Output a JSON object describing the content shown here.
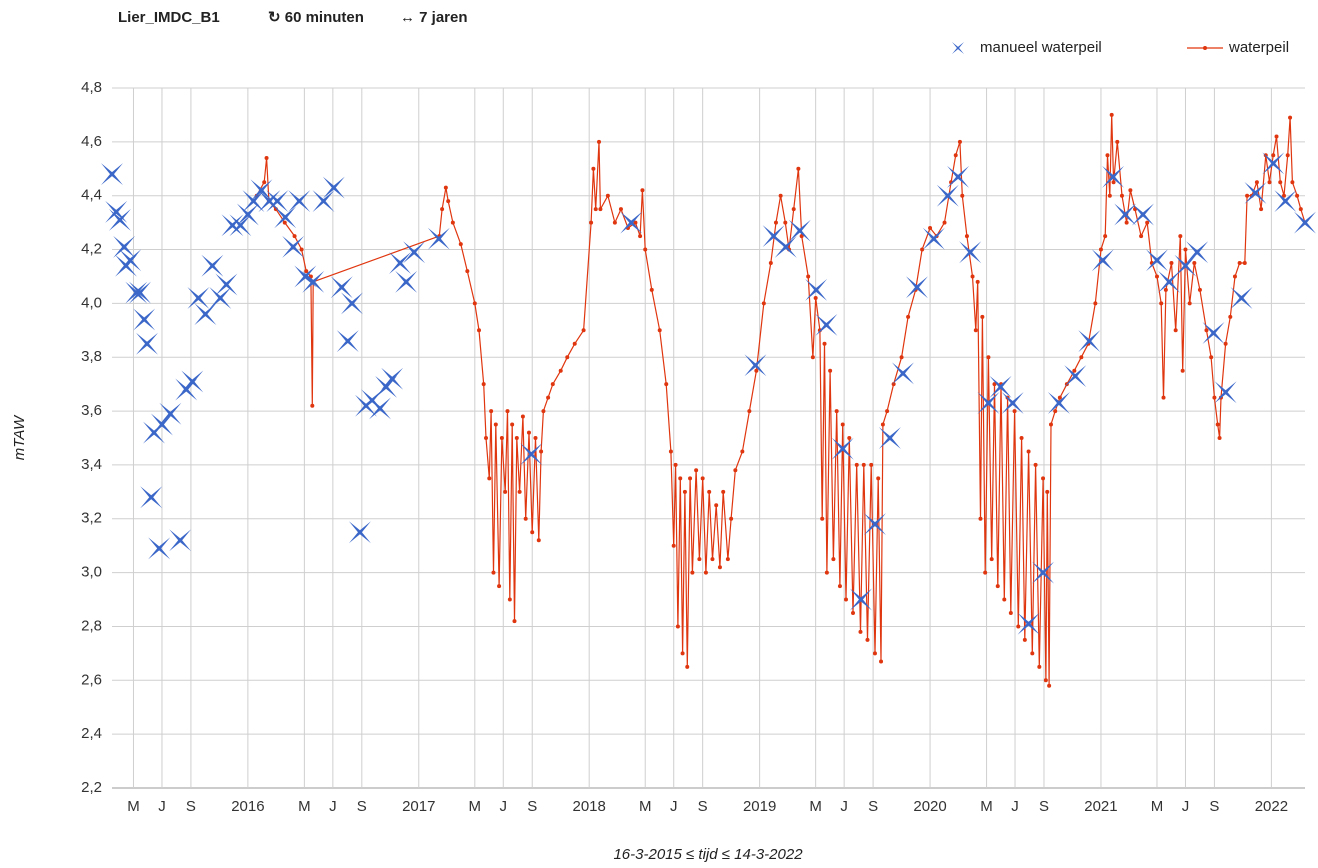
{
  "chart_data": {
    "type": "line",
    "title": "Lier_IMDC_B1",
    "subtitle": [
      "↻ 60 minuten",
      "↔ 7 jaren"
    ],
    "ylabel": "mTAW",
    "xlabel": "16-3-2015 ≤ tijd ≤ 14-3-2022",
    "legend": "top-right",
    "grid": true,
    "xlim": [
      "2015-03-16",
      "2022-03-14"
    ],
    "xticks": [
      {
        "value": "2015-05-01",
        "label": "M"
      },
      {
        "value": "2015-07-01",
        "label": "J"
      },
      {
        "value": "2015-09-01",
        "label": "S"
      },
      {
        "value": "2016-01-01",
        "label": "2016"
      },
      {
        "value": "2016-05-01",
        "label": "M"
      },
      {
        "value": "2016-07-01",
        "label": "J"
      },
      {
        "value": "2016-09-01",
        "label": "S"
      },
      {
        "value": "2017-01-01",
        "label": "2017"
      },
      {
        "value": "2017-05-01",
        "label": "M"
      },
      {
        "value": "2017-07-01",
        "label": "J"
      },
      {
        "value": "2017-09-01",
        "label": "S"
      },
      {
        "value": "2018-01-01",
        "label": "2018"
      },
      {
        "value": "2018-05-01",
        "label": "M"
      },
      {
        "value": "2018-07-01",
        "label": "J"
      },
      {
        "value": "2018-09-01",
        "label": "S"
      },
      {
        "value": "2019-01-01",
        "label": "2019"
      },
      {
        "value": "2019-05-01",
        "label": "M"
      },
      {
        "value": "2019-07-01",
        "label": "J"
      },
      {
        "value": "2019-09-01",
        "label": "S"
      },
      {
        "value": "2020-01-01",
        "label": "2020"
      },
      {
        "value": "2020-05-01",
        "label": "M"
      },
      {
        "value": "2020-07-01",
        "label": "J"
      },
      {
        "value": "2020-09-01",
        "label": "S"
      },
      {
        "value": "2021-01-01",
        "label": "2021"
      },
      {
        "value": "2021-05-01",
        "label": "M"
      },
      {
        "value": "2021-07-01",
        "label": "J"
      },
      {
        "value": "2021-09-01",
        "label": "S"
      },
      {
        "value": "2022-01-01",
        "label": "2022"
      }
    ],
    "ylim": [
      2.2,
      4.8
    ],
    "yticks": [
      {
        "value": 2.2,
        "label": "2,2"
      },
      {
        "value": 2.4,
        "label": "2,4"
      },
      {
        "value": 2.6,
        "label": "2,6"
      },
      {
        "value": 2.8,
        "label": "2,8"
      },
      {
        "value": 3.0,
        "label": "3,0"
      },
      {
        "value": 3.2,
        "label": "3,2"
      },
      {
        "value": 3.4,
        "label": "3,4"
      },
      {
        "value": 3.6,
        "label": "3,6"
      },
      {
        "value": 3.8,
        "label": "3,8"
      },
      {
        "value": 4.0,
        "label": "4,0"
      },
      {
        "value": 4.2,
        "label": "4,2"
      },
      {
        "value": 4.4,
        "label": "4,4"
      },
      {
        "value": 4.6,
        "label": "4,6"
      },
      {
        "value": 4.8,
        "label": "4,8"
      }
    ],
    "series": [
      {
        "name": "manueel waterpeil",
        "color": "#3b67c9",
        "mode": "markers",
        "x": [
          "2015-03-16",
          "2015-03-25",
          "2015-04-02",
          "2015-04-11",
          "2015-04-15",
          "2015-04-24",
          "2015-05-07",
          "2015-05-15",
          "2015-05-24",
          "2015-05-30",
          "2015-06-08",
          "2015-06-14",
          "2015-06-25",
          "2015-07-01",
          "2015-07-19",
          "2015-08-09",
          "2015-08-22",
          "2015-09-04",
          "2015-09-17",
          "2015-10-02",
          "2015-10-17",
          "2015-11-03",
          "2015-11-16",
          "2015-11-29",
          "2015-12-16",
          "2016-01-01",
          "2016-01-13",
          "2016-01-30",
          "2016-02-16",
          "2016-03-04",
          "2016-03-21",
          "2016-04-07",
          "2016-04-20",
          "2016-05-03",
          "2016-05-20",
          "2016-06-11",
          "2016-07-03",
          "2016-07-20",
          "2016-08-02",
          "2016-08-11",
          "2016-08-28",
          "2016-09-10",
          "2016-09-23",
          "2016-10-10",
          "2016-10-23",
          "2016-11-05",
          "2016-11-22",
          "2016-12-05",
          "2016-12-22",
          "2017-02-13",
          "2017-08-30",
          "2018-04-01",
          "2018-12-23",
          "2019-01-31",
          "2019-02-26",
          "2019-03-28",
          "2019-05-02",
          "2019-05-24",
          "2019-06-28",
          "2019-08-06",
          "2019-09-05",
          "2019-10-07",
          "2019-11-04",
          "2019-12-04",
          "2020-01-09",
          "2020-02-08",
          "2020-03-01",
          "2020-03-27",
          "2020-05-05",
          "2020-05-31",
          "2020-06-26",
          "2020-07-30",
          "2020-08-30",
          "2020-10-03",
          "2020-11-07",
          "2020-12-07",
          "2021-01-05",
          "2021-01-27",
          "2021-02-22",
          "2021-04-01",
          "2021-05-01",
          "2021-05-27",
          "2021-07-01",
          "2021-07-26",
          "2021-08-30",
          "2021-09-25",
          "2021-10-29",
          "2021-11-28",
          "2022-01-05",
          "2022-01-31",
          "2022-03-14"
        ],
        "values": [
          4.48,
          4.34,
          4.31,
          4.21,
          4.14,
          4.16,
          4.04,
          4.04,
          3.94,
          3.85,
          3.28,
          3.52,
          3.09,
          3.55,
          3.59,
          3.12,
          3.68,
          3.71,
          4.02,
          3.96,
          4.14,
          4.02,
          4.07,
          4.29,
          4.29,
          4.33,
          4.38,
          4.42,
          4.38,
          4.38,
          4.32,
          4.21,
          4.38,
          4.1,
          4.08,
          4.38,
          4.43,
          4.06,
          3.86,
          4.0,
          3.15,
          3.62,
          3.64,
          3.61,
          3.69,
          3.72,
          4.15,
          4.08,
          4.19,
          4.24,
          3.44,
          4.3,
          3.77,
          4.25,
          4.21,
          4.27,
          4.05,
          3.92,
          3.46,
          2.9,
          3.18,
          3.5,
          3.74,
          4.06,
          4.24,
          4.4,
          4.47,
          4.19,
          3.63,
          3.69,
          3.63,
          2.81,
          3.0,
          3.63,
          3.73,
          3.86,
          4.16,
          4.47,
          4.33,
          4.33,
          4.16,
          4.08,
          4.14,
          4.19,
          3.89,
          3.67,
          4.02,
          4.41,
          4.52,
          4.38,
          4.3
        ]
      },
      {
        "name": "waterpeil",
        "color": "#e0360f",
        "mode": "lines+markers",
        "x": [
          "2016-01-20",
          "2016-02-05",
          "2016-02-10",
          "2016-02-15",
          "2016-03-01",
          "2016-03-20",
          "2016-04-10",
          "2016-04-25",
          "2016-05-05",
          "2016-05-15",
          "2016-05-18",
          "2016-05-20",
          "2017-02-14",
          "2017-02-20",
          "2017-02-28",
          "2017-03-05",
          "2017-03-15",
          "2017-04-01",
          "2017-04-15",
          "2017-05-01",
          "2017-05-10",
          "2017-05-20",
          "2017-05-25",
          "2017-06-01",
          "2017-06-05",
          "2017-06-10",
          "2017-06-15",
          "2017-06-22",
          "2017-06-28",
          "2017-07-05",
          "2017-07-10",
          "2017-07-15",
          "2017-07-20",
          "2017-07-25",
          "2017-07-30",
          "2017-08-05",
          "2017-08-12",
          "2017-08-18",
          "2017-08-25",
          "2017-09-01",
          "2017-09-08",
          "2017-09-15",
          "2017-09-20",
          "2017-09-25",
          "2017-10-05",
          "2017-10-15",
          "2017-11-01",
          "2017-11-15",
          "2017-12-01",
          "2017-12-20",
          "2018-01-05",
          "2018-01-10",
          "2018-01-15",
          "2018-01-22",
          "2018-01-25",
          "2018-02-10",
          "2018-02-25",
          "2018-03-10",
          "2018-03-25",
          "2018-04-10",
          "2018-04-20",
          "2018-04-25",
          "2018-05-01",
          "2018-05-15",
          "2018-06-01",
          "2018-06-15",
          "2018-06-25",
          "2018-07-01",
          "2018-07-05",
          "2018-07-10",
          "2018-07-15",
          "2018-07-20",
          "2018-07-25",
          "2018-07-30",
          "2018-08-05",
          "2018-08-10",
          "2018-08-18",
          "2018-08-25",
          "2018-09-01",
          "2018-09-08",
          "2018-09-15",
          "2018-09-22",
          "2018-09-30",
          "2018-10-08",
          "2018-10-15",
          "2018-10-25",
          "2018-11-01",
          "2018-11-10",
          "2018-11-25",
          "2018-12-10",
          "2018-12-25",
          "2019-01-10",
          "2019-01-25",
          "2019-02-05",
          "2019-02-15",
          "2019-02-25",
          "2019-03-05",
          "2019-03-15",
          "2019-03-25",
          "2019-04-01",
          "2019-04-15",
          "2019-04-25",
          "2019-05-01",
          "2019-05-10",
          "2019-05-15",
          "2019-05-20",
          "2019-05-25",
          "2019-06-01",
          "2019-06-08",
          "2019-06-15",
          "2019-06-22",
          "2019-06-28",
          "2019-07-05",
          "2019-07-12",
          "2019-07-20",
          "2019-07-28",
          "2019-08-05",
          "2019-08-12",
          "2019-08-20",
          "2019-08-28",
          "2019-09-05",
          "2019-09-12",
          "2019-09-18",
          "2019-09-22",
          "2019-10-01",
          "2019-10-15",
          "2019-11-01",
          "2019-11-15",
          "2019-12-01",
          "2019-12-15",
          "2020-01-01",
          "2020-01-15",
          "2020-02-01",
          "2020-02-15",
          "2020-02-25",
          "2020-03-05",
          "2020-03-10",
          "2020-03-20",
          "2020-04-01",
          "2020-04-08",
          "2020-04-12",
          "2020-04-18",
          "2020-04-22",
          "2020-04-28",
          "2020-05-05",
          "2020-05-12",
          "2020-05-18",
          "2020-05-25",
          "2020-06-01",
          "2020-06-08",
          "2020-06-15",
          "2020-06-22",
          "2020-06-30",
          "2020-07-08",
          "2020-07-15",
          "2020-07-22",
          "2020-07-30",
          "2020-08-07",
          "2020-08-14",
          "2020-08-22",
          "2020-08-30",
          "2020-09-05",
          "2020-09-08",
          "2020-09-12",
          "2020-09-16",
          "2020-09-25",
          "2020-10-05",
          "2020-10-20",
          "2020-11-05",
          "2020-11-20",
          "2020-12-05",
          "2020-12-20",
          "2021-01-01",
          "2021-01-10",
          "2021-01-15",
          "2021-01-20",
          "2021-01-24",
          "2021-01-28",
          "2021-02-05",
          "2021-02-15",
          "2021-02-25",
          "2021-03-05",
          "2021-03-15",
          "2021-03-28",
          "2021-04-10",
          "2021-04-20",
          "2021-05-01",
          "2021-05-10",
          "2021-05-15",
          "2021-05-20",
          "2021-06-01",
          "2021-06-10",
          "2021-06-20",
          "2021-06-25",
          "2021-07-01",
          "2021-07-10",
          "2021-07-20",
          "2021-08-01",
          "2021-08-15",
          "2021-08-25",
          "2021-09-01",
          "2021-09-08",
          "2021-09-12",
          "2021-09-15",
          "2021-09-25",
          "2021-10-05",
          "2021-10-15",
          "2021-10-25",
          "2021-11-05",
          "2021-11-10",
          "2021-11-20",
          "2021-12-01",
          "2021-12-10",
          "2021-12-20",
          "2021-12-28",
          "2022-01-05",
          "2022-01-12",
          "2022-01-20",
          "2022-01-28",
          "2022-02-05",
          "2022-02-10",
          "2022-02-15",
          "2022-02-25",
          "2022-03-05",
          "2022-03-14"
        ],
        "values": [
          4.4,
          4.45,
          4.54,
          4.38,
          4.35,
          4.3,
          4.25,
          4.2,
          4.12,
          4.1,
          3.62,
          4.08,
          4.25,
          4.35,
          4.43,
          4.38,
          4.3,
          4.22,
          4.12,
          4.0,
          3.9,
          3.7,
          3.5,
          3.35,
          3.6,
          3.0,
          3.55,
          2.95,
          3.5,
          3.3,
          3.6,
          2.9,
          3.55,
          2.82,
          3.5,
          3.3,
          3.58,
          3.2,
          3.52,
          3.15,
          3.5,
          3.12,
          3.45,
          3.6,
          3.65,
          3.7,
          3.75,
          3.8,
          3.85,
          3.9,
          4.3,
          4.5,
          4.35,
          4.6,
          4.35,
          4.4,
          4.3,
          4.35,
          4.28,
          4.3,
          4.25,
          4.42,
          4.2,
          4.05,
          3.9,
          3.7,
          3.45,
          3.1,
          3.4,
          2.8,
          3.35,
          2.7,
          3.3,
          2.65,
          3.35,
          3.0,
          3.38,
          3.05,
          3.35,
          3.0,
          3.3,
          3.05,
          3.25,
          3.02,
          3.3,
          3.05,
          3.2,
          3.38,
          3.45,
          3.6,
          3.75,
          4.0,
          4.15,
          4.3,
          4.4,
          4.3,
          4.2,
          4.35,
          4.5,
          4.25,
          4.1,
          3.8,
          4.02,
          3.9,
          3.2,
          3.85,
          3.0,
          3.75,
          3.05,
          3.6,
          2.95,
          3.55,
          2.9,
          3.5,
          2.85,
          3.4,
          2.78,
          3.4,
          2.75,
          3.4,
          2.7,
          3.35,
          2.67,
          3.55,
          3.6,
          3.7,
          3.8,
          3.95,
          4.05,
          4.2,
          4.28,
          4.25,
          4.3,
          4.45,
          4.55,
          4.6,
          4.4,
          4.25,
          4.1,
          3.9,
          4.08,
          3.2,
          3.95,
          3.0,
          3.8,
          3.05,
          3.7,
          2.95,
          3.7,
          2.9,
          3.65,
          2.85,
          3.6,
          2.8,
          3.5,
          2.75,
          3.45,
          2.7,
          3.4,
          2.65,
          3.35,
          2.6,
          3.3,
          2.58,
          3.55,
          3.6,
          3.65,
          3.7,
          3.75,
          3.8,
          3.85,
          4.0,
          4.2,
          4.25,
          4.55,
          4.4,
          4.7,
          4.45,
          4.6,
          4.4,
          4.3,
          4.42,
          4.35,
          4.25,
          4.3,
          4.15,
          4.1,
          4.0,
          3.65,
          4.05,
          4.15,
          3.9,
          4.25,
          3.75,
          4.2,
          4.0,
          4.15,
          4.05,
          3.9,
          3.8,
          3.65,
          3.55,
          3.5,
          3.65,
          3.85,
          3.95,
          4.1,
          4.15,
          4.15,
          4.4,
          4.4,
          4.45,
          4.35,
          4.55,
          4.45,
          4.55,
          4.62,
          4.45,
          4.4,
          4.55,
          4.69,
          4.45,
          4.4,
          4.35,
          4.3
        ]
      }
    ]
  }
}
